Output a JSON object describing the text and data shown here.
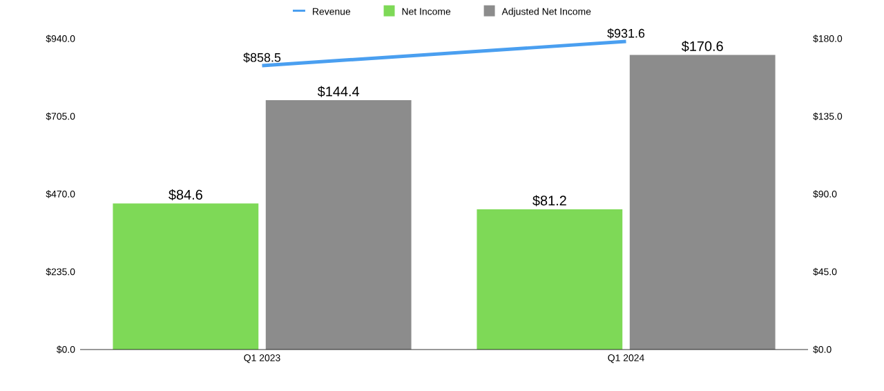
{
  "chart_data": {
    "type": "bar",
    "categories": [
      "Q1 2023",
      "Q1 2024"
    ],
    "series": [
      {
        "name": "Revenue",
        "type": "line",
        "color": "#4a9ff0",
        "values": [
          858.5,
          931.6
        ],
        "value_labels": [
          "$858.5",
          "$931.6"
        ]
      },
      {
        "name": "Net Income",
        "color": "#7ed957",
        "axis": "y2",
        "values": [
          84.6,
          81.2
        ],
        "value_labels": [
          "$84.6",
          "$81.2"
        ]
      },
      {
        "name": "Adjusted Net Income",
        "color": "#8c8c8c",
        "axis": "y2",
        "values": [
          144.4,
          170.6
        ],
        "value_labels": [
          "$144.4",
          "$170.6"
        ]
      }
    ],
    "ylim": [
      0,
      940
    ],
    "yticks": [
      {
        "value": 0,
        "label": "$0.0"
      },
      {
        "value": 235,
        "label": "$235.0"
      },
      {
        "value": 470,
        "label": "$470.0"
      },
      {
        "value": 705,
        "label": "$705.0"
      },
      {
        "value": 940,
        "label": "$940.0"
      }
    ],
    "y2lim": [
      0,
      180
    ],
    "y2ticks": [
      {
        "value": 0,
        "label": "$0.0"
      },
      {
        "value": 45,
        "label": "$45.0"
      },
      {
        "value": 90,
        "label": "$90.0"
      },
      {
        "value": 135,
        "label": "$135.0"
      },
      {
        "value": 180,
        "label": "$180.0"
      }
    ],
    "legend": "top"
  }
}
